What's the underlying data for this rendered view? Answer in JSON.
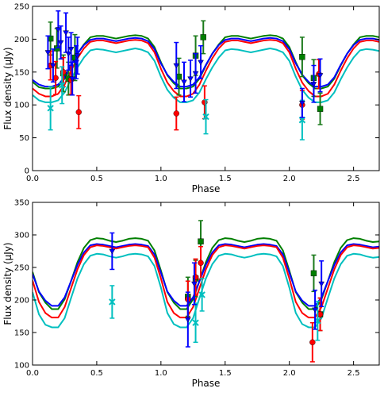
{
  "colors": {
    "blue": "#0000ff",
    "green": "#007f00",
    "red": "#ff0000",
    "cyan": "#00bfbf",
    "errorbar_green": "#1a7a1a"
  },
  "chart_data": [
    {
      "type": "line",
      "xlabel": "Phase",
      "ylabel": "Flux density (μJy)",
      "xlim": [
        0.0,
        2.7
      ],
      "ylim": [
        0,
        250
      ],
      "xticks": [
        0.0,
        0.5,
        1.0,
        1.5,
        2.0,
        2.5
      ],
      "xtick_labels": [
        "0.0",
        "0.5",
        "1.0",
        "1.5",
        "2.0",
        "2.5"
      ],
      "yticks": [
        0,
        50,
        100,
        150,
        200,
        250
      ],
      "ytick_labels": [
        "0",
        "50",
        "100",
        "150",
        "200",
        "250"
      ],
      "grid": false,
      "x": [
        0.0,
        0.05,
        0.1,
        0.15,
        0.2,
        0.25,
        0.3,
        0.35,
        0.4,
        0.45,
        0.5,
        0.55,
        0.6,
        0.65,
        0.7,
        0.75,
        0.8,
        0.85,
        0.9,
        0.95,
        1.0,
        1.05,
        1.1,
        1.15,
        1.2,
        1.25,
        1.3,
        1.35,
        1.4,
        1.45,
        1.5,
        1.55,
        1.6,
        1.65,
        1.7,
        1.75,
        1.8,
        1.85,
        1.9,
        1.95,
        2.0,
        2.05,
        2.1,
        2.15,
        2.2,
        2.25,
        2.3,
        2.35,
        2.4,
        2.45,
        2.5,
        2.55,
        2.6,
        2.65,
        2.7
      ],
      "series": [
        {
          "color": "green",
          "values": [
            135,
            127,
            125,
            125,
            128,
            140,
            160,
            178,
            192,
            203,
            205,
            205,
            203,
            201,
            203,
            205,
            206,
            205,
            201,
            188,
            165,
            145,
            133,
            125,
            125,
            128,
            140,
            160,
            178,
            192,
            203,
            205,
            205,
            203,
            201,
            203,
            205,
            206,
            205,
            201,
            188,
            165,
            145,
            133,
            125,
            125,
            128,
            140,
            160,
            178,
            192,
            203,
            205,
            205,
            203
          ]
        },
        {
          "color": "blue",
          "values": [
            138,
            131,
            128,
            128,
            131,
            142,
            161,
            178,
            191,
            199,
            201,
            201,
            199,
            197,
            199,
            201,
            202,
            201,
            197,
            185,
            163,
            146,
            135,
            128,
            128,
            131,
            142,
            161,
            178,
            191,
            199,
            201,
            201,
            199,
            197,
            199,
            201,
            202,
            201,
            197,
            185,
            163,
            146,
            135,
            128,
            128,
            131,
            142,
            161,
            178,
            191,
            199,
            201,
            201,
            199
          ]
        },
        {
          "color": "red",
          "values": [
            125,
            117,
            113,
            113,
            117,
            131,
            152,
            171,
            186,
            196,
            198,
            198,
            196,
            194,
            196,
            198,
            199,
            198,
            194,
            180,
            155,
            134,
            121,
            113,
            113,
            117,
            131,
            152,
            171,
            186,
            196,
            198,
            198,
            196,
            194,
            196,
            198,
            199,
            198,
            194,
            180,
            155,
            134,
            121,
            113,
            113,
            117,
            131,
            152,
            171,
            186,
            196,
            198,
            198,
            196
          ]
        },
        {
          "color": "cyan",
          "values": [
            115,
            107,
            104,
            104,
            107,
            119,
            139,
            157,
            172,
            183,
            185,
            184,
            182,
            180,
            182,
            184,
            186,
            184,
            180,
            167,
            143,
            123,
            111,
            104,
            104,
            107,
            119,
            139,
            157,
            172,
            183,
            185,
            184,
            182,
            180,
            182,
            184,
            186,
            184,
            180,
            167,
            143,
            123,
            111,
            104,
            104,
            107,
            119,
            139,
            157,
            172,
            183,
            185,
            184,
            182
          ]
        }
      ],
      "points": [
        {
          "x": 0.14,
          "y": 201,
          "err": 25,
          "marker": "square",
          "color": "green"
        },
        {
          "x": 0.19,
          "y": 186,
          "err": 30,
          "marker": "square",
          "color": "green"
        },
        {
          "x": 0.24,
          "y": 148,
          "err": 28,
          "marker": "square",
          "color": "green"
        },
        {
          "x": 0.28,
          "y": 140,
          "err": 25,
          "marker": "square",
          "color": "green"
        },
        {
          "x": 0.33,
          "y": 172,
          "err": 35,
          "marker": "square",
          "color": "green"
        },
        {
          "x": 1.14,
          "y": 143,
          "err": 28,
          "marker": "square",
          "color": "green"
        },
        {
          "x": 1.27,
          "y": 175,
          "err": 30,
          "marker": "square",
          "color": "green"
        },
        {
          "x": 1.33,
          "y": 203,
          "err": 25,
          "marker": "square",
          "color": "green"
        },
        {
          "x": 2.1,
          "y": 173,
          "err": 30,
          "marker": "square",
          "color": "green"
        },
        {
          "x": 2.19,
          "y": 141,
          "err": 28,
          "marker": "square",
          "color": "green"
        },
        {
          "x": 2.24,
          "y": 94,
          "err": 24,
          "marker": "square",
          "color": "green"
        },
        {
          "x": 0.14,
          "y": 160,
          "err": 22,
          "marker": "circle",
          "color": "red"
        },
        {
          "x": 0.18,
          "y": 141,
          "err": 25,
          "marker": "circle",
          "color": "red"
        },
        {
          "x": 0.24,
          "y": 150,
          "err": 22,
          "marker": "circle",
          "color": "red"
        },
        {
          "x": 0.3,
          "y": 138,
          "err": 22,
          "marker": "circle",
          "color": "red"
        },
        {
          "x": 0.36,
          "y": 89,
          "err": 25,
          "marker": "circle",
          "color": "red"
        },
        {
          "x": 1.12,
          "y": 87,
          "err": 25,
          "marker": "circle",
          "color": "red"
        },
        {
          "x": 1.34,
          "y": 104,
          "err": 25,
          "marker": "circle",
          "color": "red"
        },
        {
          "x": 2.1,
          "y": 100,
          "err": 22,
          "marker": "circle",
          "color": "red"
        },
        {
          "x": 2.23,
          "y": 147,
          "err": 22,
          "marker": "circle",
          "color": "red"
        },
        {
          "x": 0.14,
          "y": 95,
          "err": 33,
          "marker": "cross",
          "color": "cyan"
        },
        {
          "x": 0.23,
          "y": 130,
          "err": 28,
          "marker": "cross",
          "color": "cyan"
        },
        {
          "x": 1.35,
          "y": 82,
          "err": 26,
          "marker": "cross",
          "color": "cyan"
        },
        {
          "x": 2.1,
          "y": 77,
          "err": 30,
          "marker": "cross",
          "color": "cyan"
        },
        {
          "x": 0.12,
          "y": 180,
          "err": 25,
          "marker": "tri",
          "color": "blue"
        },
        {
          "x": 0.16,
          "y": 160,
          "err": 25,
          "marker": "tri",
          "color": "blue"
        },
        {
          "x": 0.2,
          "y": 215,
          "err": 28,
          "marker": "tri",
          "color": "blue"
        },
        {
          "x": 0.22,
          "y": 195,
          "err": 25,
          "marker": "tri",
          "color": "blue"
        },
        {
          "x": 0.26,
          "y": 210,
          "err": 30,
          "marker": "tri",
          "color": "blue"
        },
        {
          "x": 0.28,
          "y": 178,
          "err": 25,
          "marker": "tri",
          "color": "blue"
        },
        {
          "x": 0.3,
          "y": 185,
          "err": 25,
          "marker": "tri",
          "color": "blue"
        },
        {
          "x": 0.31,
          "y": 140,
          "err": 25,
          "marker": "tri",
          "color": "blue"
        },
        {
          "x": 0.34,
          "y": 165,
          "err": 25,
          "marker": "tri",
          "color": "blue"
        },
        {
          "x": 0.35,
          "y": 175,
          "err": 28,
          "marker": "tri",
          "color": "blue"
        },
        {
          "x": 1.12,
          "y": 160,
          "err": 35,
          "marker": "tri",
          "color": "blue"
        },
        {
          "x": 1.18,
          "y": 135,
          "err": 30,
          "marker": "tri",
          "color": "blue"
        },
        {
          "x": 1.23,
          "y": 140,
          "err": 28,
          "marker": "tri",
          "color": "blue"
        },
        {
          "x": 1.27,
          "y": 148,
          "err": 30,
          "marker": "tri",
          "color": "blue"
        },
        {
          "x": 1.31,
          "y": 165,
          "err": 25,
          "marker": "tri",
          "color": "blue"
        },
        {
          "x": 2.1,
          "y": 103,
          "err": 22,
          "marker": "tri",
          "color": "blue"
        },
        {
          "x": 2.19,
          "y": 132,
          "err": 28,
          "marker": "tri",
          "color": "blue"
        },
        {
          "x": 2.24,
          "y": 145,
          "err": 25,
          "marker": "tri",
          "color": "blue"
        }
      ]
    },
    {
      "type": "line",
      "xlabel": "Phase",
      "ylabel": "Flux density (μJy)",
      "xlim": [
        0.0,
        2.7
      ],
      "ylim": [
        100,
        350
      ],
      "xticks": [
        0.0,
        0.5,
        1.0,
        1.5,
        2.0,
        2.5
      ],
      "xtick_labels": [
        "0.0",
        "0.5",
        "1.0",
        "1.5",
        "2.0",
        "2.5"
      ],
      "yticks": [
        100,
        150,
        200,
        250,
        300,
        350
      ],
      "ytick_labels": [
        "100",
        "150",
        "200",
        "250",
        "300",
        "350"
      ],
      "grid": false,
      "x": [
        0.0,
        0.05,
        0.1,
        0.15,
        0.2,
        0.25,
        0.3,
        0.35,
        0.4,
        0.45,
        0.5,
        0.55,
        0.6,
        0.65,
        0.7,
        0.75,
        0.8,
        0.85,
        0.9,
        0.95,
        1.0,
        1.05,
        1.1,
        1.15,
        1.2,
        1.25,
        1.3,
        1.35,
        1.4,
        1.45,
        1.5,
        1.55,
        1.6,
        1.65,
        1.7,
        1.75,
        1.8,
        1.85,
        1.9,
        1.95,
        2.0,
        2.05,
        2.1,
        2.15,
        2.2,
        2.25,
        2.3,
        2.35,
        2.4,
        2.45,
        2.5,
        2.55,
        2.6,
        2.65,
        2.7
      ],
      "series": [
        {
          "color": "green",
          "values": [
            243,
            212,
            196,
            186,
            186,
            201,
            229,
            258,
            280,
            292,
            295,
            294,
            291,
            289,
            291,
            294,
            295,
            294,
            291,
            276,
            245,
            212,
            196,
            186,
            186,
            201,
            229,
            258,
            280,
            292,
            295,
            294,
            291,
            289,
            291,
            294,
            295,
            294,
            291,
            276,
            245,
            212,
            196,
            186,
            186,
            201,
            229,
            258,
            280,
            292,
            295,
            294,
            291,
            289,
            290
          ]
        },
        {
          "color": "blue",
          "values": [
            240,
            213,
            199,
            191,
            191,
            204,
            229,
            254,
            273,
            284,
            286,
            285,
            283,
            281,
            283,
            285,
            286,
            285,
            283,
            270,
            242,
            213,
            199,
            191,
            191,
            204,
            229,
            254,
            273,
            284,
            286,
            285,
            283,
            281,
            283,
            285,
            286,
            285,
            283,
            270,
            242,
            213,
            199,
            191,
            191,
            204,
            229,
            254,
            273,
            284,
            286,
            285,
            283,
            281,
            282
          ]
        },
        {
          "color": "red",
          "values": [
            230,
            197,
            180,
            173,
            173,
            189,
            218,
            247,
            269,
            281,
            284,
            283,
            281,
            279,
            281,
            283,
            284,
            283,
            281,
            265,
            233,
            197,
            180,
            173,
            173,
            189,
            218,
            247,
            269,
            281,
            284,
            283,
            281,
            279,
            281,
            283,
            284,
            283,
            281,
            265,
            233,
            197,
            180,
            173,
            173,
            189,
            218,
            247,
            269,
            281,
            284,
            283,
            281,
            279,
            280
          ]
        },
        {
          "color": "cyan",
          "values": [
            212,
            178,
            162,
            158,
            158,
            172,
            203,
            233,
            255,
            268,
            271,
            270,
            267,
            265,
            267,
            270,
            271,
            270,
            267,
            252,
            219,
            180,
            163,
            158,
            158,
            172,
            203,
            233,
            255,
            268,
            271,
            270,
            267,
            265,
            267,
            270,
            271,
            270,
            267,
            252,
            219,
            180,
            163,
            158,
            158,
            172,
            203,
            233,
            255,
            268,
            271,
            270,
            267,
            265,
            266
          ]
        }
      ],
      "points": [
        {
          "x": 1.21,
          "y": 205,
          "err": 30,
          "marker": "square",
          "color": "green"
        },
        {
          "x": 1.27,
          "y": 233,
          "err": 28,
          "marker": "square",
          "color": "green"
        },
        {
          "x": 1.31,
          "y": 290,
          "err": 32,
          "marker": "square",
          "color": "green"
        },
        {
          "x": 2.19,
          "y": 241,
          "err": 28,
          "marker": "square",
          "color": "green"
        },
        {
          "x": 2.24,
          "y": 178,
          "err": 25,
          "marker": "square",
          "color": "green"
        },
        {
          "x": 1.21,
          "y": 201,
          "err": 28,
          "marker": "circle",
          "color": "red"
        },
        {
          "x": 1.27,
          "y": 235,
          "err": 28,
          "marker": "circle",
          "color": "red"
        },
        {
          "x": 1.31,
          "y": 257,
          "err": 25,
          "marker": "circle",
          "color": "red"
        },
        {
          "x": 2.18,
          "y": 135,
          "err": 30,
          "marker": "circle",
          "color": "red"
        },
        {
          "x": 2.24,
          "y": 178,
          "err": 25,
          "marker": "circle",
          "color": "red"
        },
        {
          "x": 0.62,
          "y": 197,
          "err": 25,
          "marker": "cross",
          "color": "cyan"
        },
        {
          "x": 1.27,
          "y": 165,
          "err": 30,
          "marker": "cross",
          "color": "cyan"
        },
        {
          "x": 1.32,
          "y": 208,
          "err": 25,
          "marker": "cross",
          "color": "cyan"
        },
        {
          "x": 2.22,
          "y": 168,
          "err": 30,
          "marker": "cross",
          "color": "cyan"
        },
        {
          "x": 0.62,
          "y": 275,
          "err": 28,
          "marker": "tri",
          "color": "blue"
        },
        {
          "x": 1.21,
          "y": 170,
          "err": 42,
          "marker": "tri",
          "color": "blue"
        },
        {
          "x": 1.26,
          "y": 225,
          "err": 32,
          "marker": "tri",
          "color": "blue"
        },
        {
          "x": 2.2,
          "y": 185,
          "err": 30,
          "marker": "tri",
          "color": "blue"
        },
        {
          "x": 2.25,
          "y": 225,
          "err": 35,
          "marker": "tri",
          "color": "blue"
        }
      ]
    }
  ]
}
